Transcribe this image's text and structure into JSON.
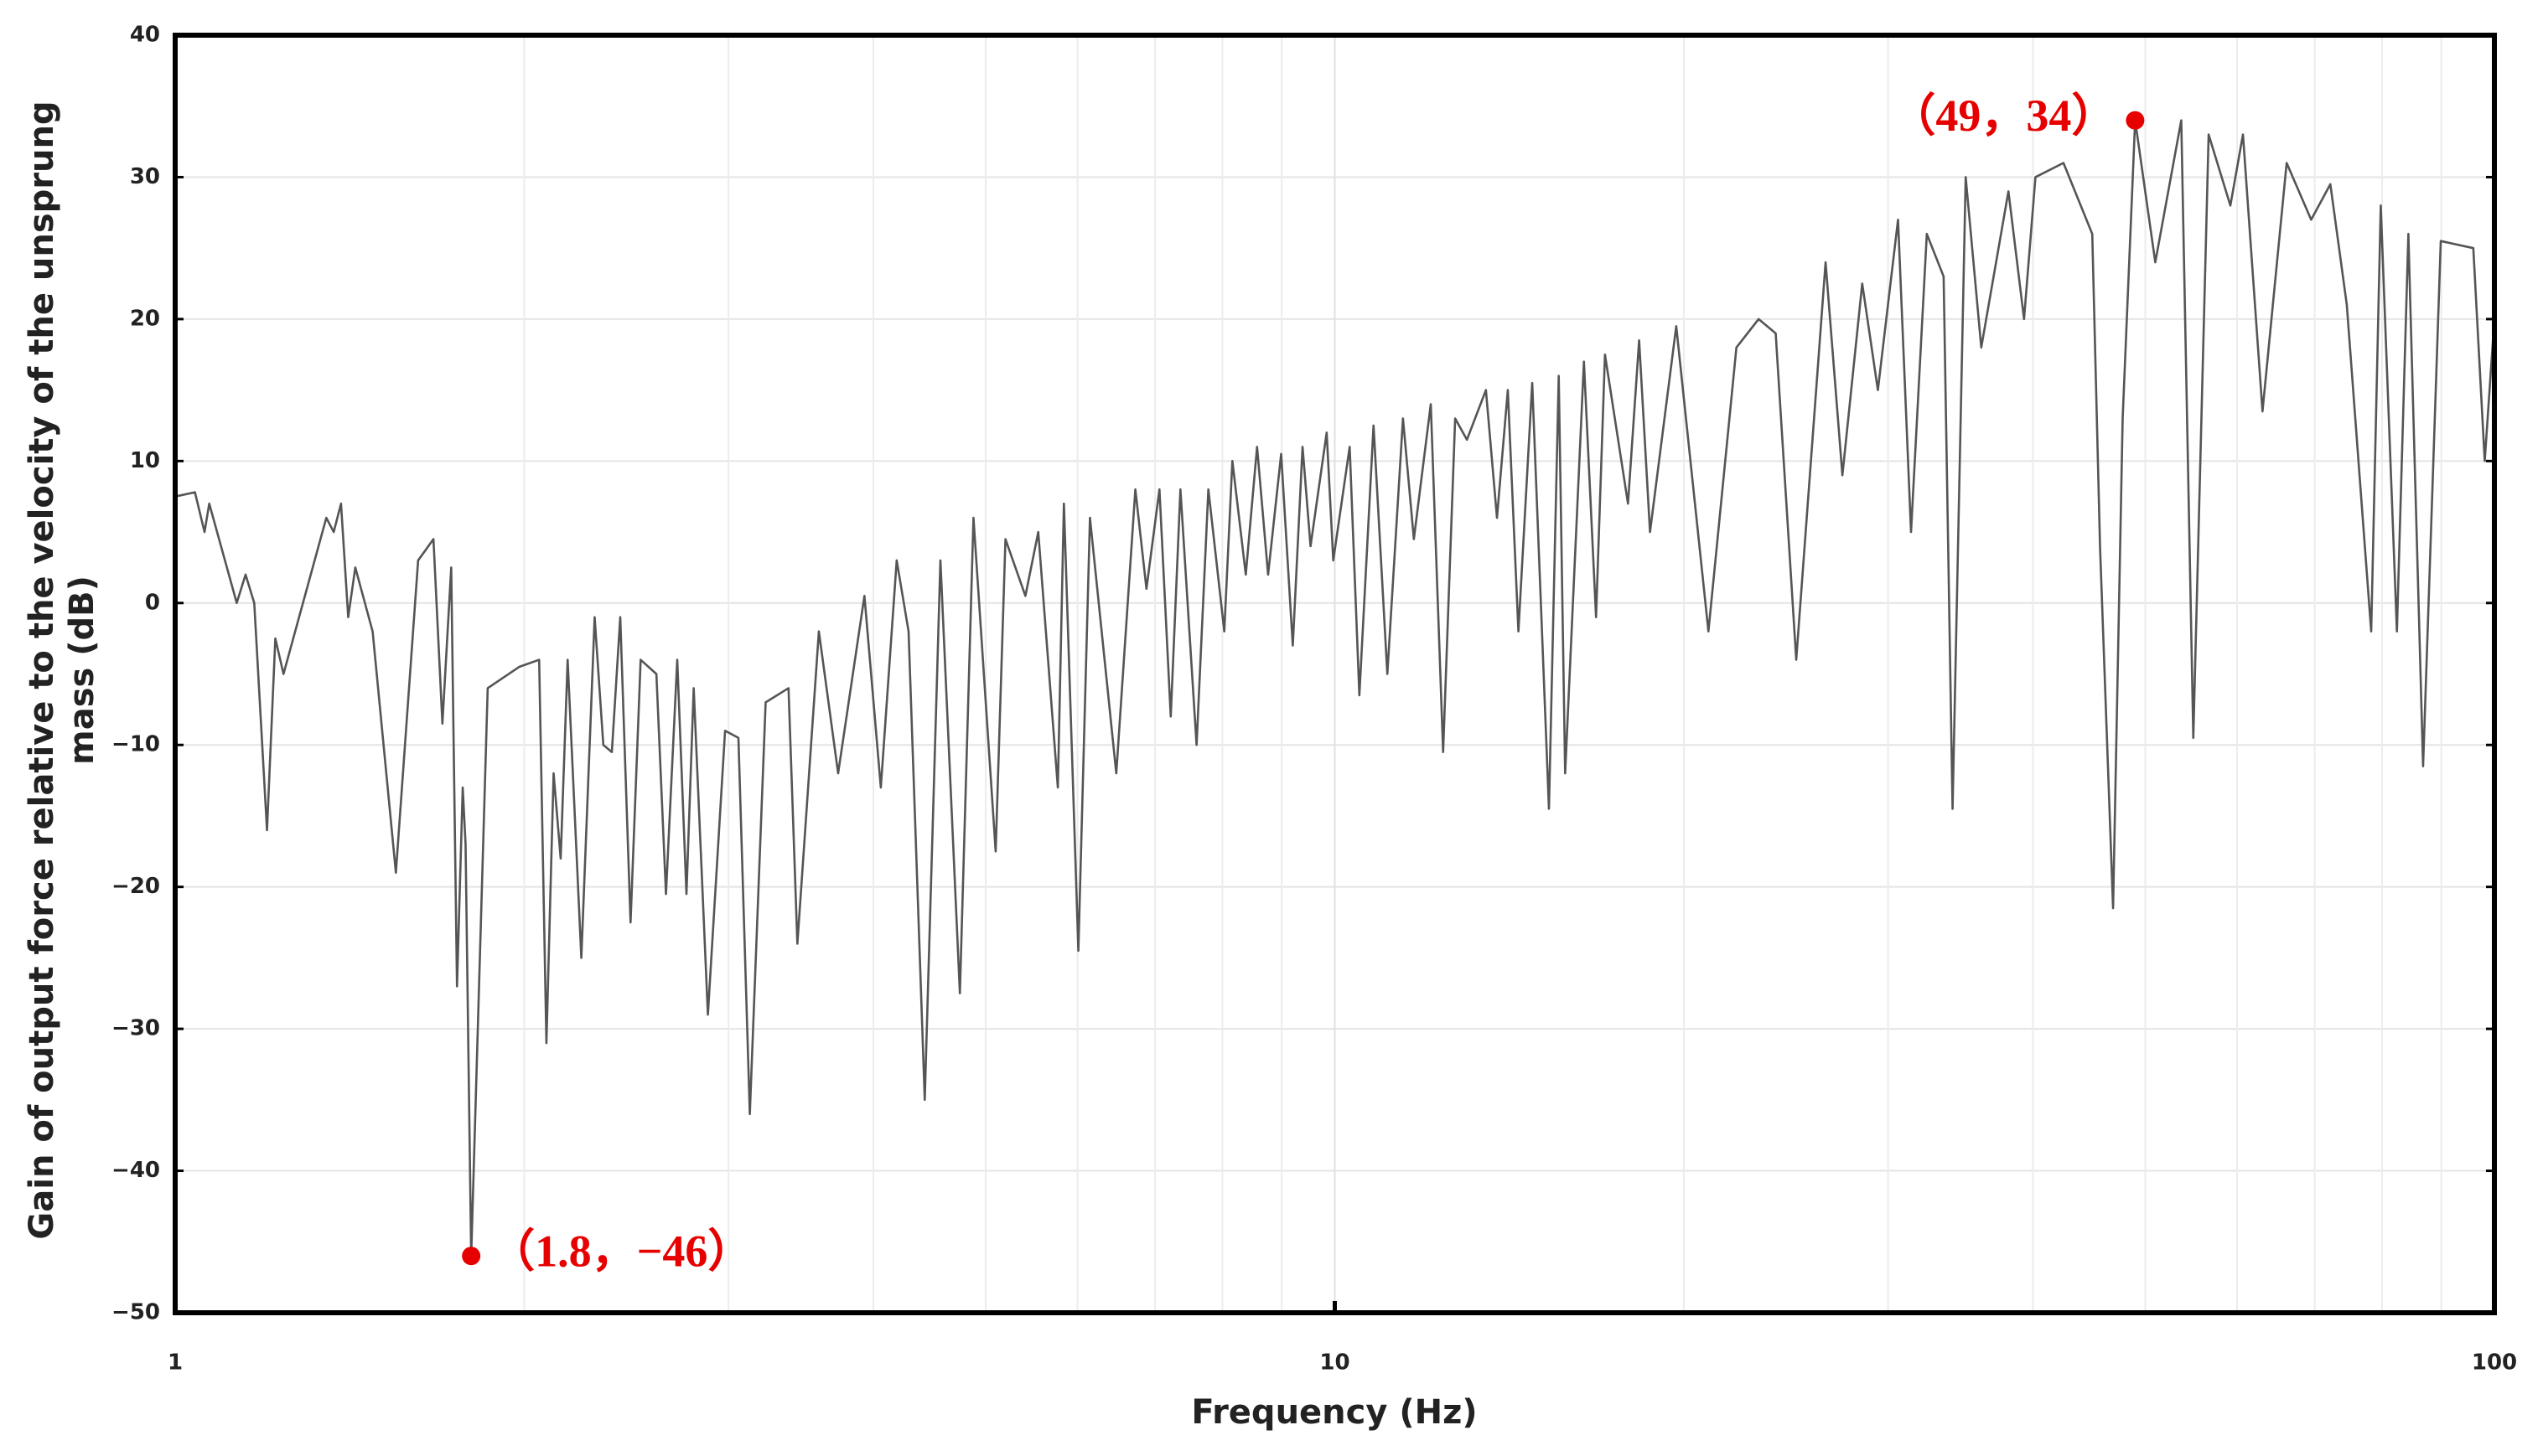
{
  "chart_data": {
    "type": "line",
    "xlabel": "Frequency (Hz)",
    "ylabel": [
      "Gain of output force relative to the velocity of the unsprung",
      "mass (dB)"
    ],
    "xscale": "log",
    "xlim": [
      1,
      100
    ],
    "ylim": [
      -50,
      40
    ],
    "xticks": [
      1,
      10,
      100
    ],
    "xminorticks": [
      2,
      3,
      4,
      5,
      6,
      7,
      8,
      9,
      20,
      30,
      40,
      50,
      60,
      70,
      80,
      90
    ],
    "yticks": [
      {
        "value": -50,
        "label": "−50"
      },
      {
        "value": -40,
        "label": "−40"
      },
      {
        "value": -30,
        "label": "−30"
      },
      {
        "value": -20,
        "label": "−20"
      },
      {
        "value": -10,
        "label": "−10"
      },
      0,
      10,
      20,
      30,
      40
    ],
    "grid": true,
    "color": "#555555",
    "x": [
      1,
      1.04,
      1.06,
      1.07,
      1.13,
      1.15,
      1.17,
      1.2,
      1.22,
      1.24,
      1.35,
      1.37,
      1.39,
      1.41,
      1.43,
      1.48,
      1.55,
      1.62,
      1.67,
      1.7,
      1.73,
      1.75,
      1.77,
      1.78,
      1.8,
      1.86,
      1.98,
      2.06,
      2.09,
      2.12,
      2.15,
      2.18,
      2.24,
      2.3,
      2.34,
      2.38,
      2.42,
      2.47,
      2.52,
      2.6,
      2.65,
      2.71,
      2.76,
      2.8,
      2.88,
      2.98,
      3.06,
      3.13,
      3.23,
      3.38,
      3.44,
      3.59,
      3.73,
      3.93,
      4.06,
      4.19,
      4.29,
      4.43,
      4.57,
      4.75,
      4.88,
      5.1,
      5.2,
      5.41,
      5.55,
      5.77,
      5.84,
      6.01,
      6.15,
      6.48,
      6.73,
      6.88,
      7.06,
      7.22,
      7.36,
      7.6,
      7.78,
      8.03,
      8.16,
      8.38,
      8.57,
      8.76,
      8.99,
      9.2,
      9.38,
      9.53,
      9.84,
      9.97,
      10.3,
      10.5,
      10.8,
      11.1,
      11.45,
      11.7,
      12.1,
      12.4,
      12.7,
      13,
      13.5,
      13.8,
      14.1,
      14.4,
      14.8,
      15.3,
      15.6,
      15.8,
      16.4,
      16.8,
      17.1,
      17.9,
      18.3,
      18.7,
      19.7,
      21,
      22.2,
      23.2,
      24,
      25,
      26.5,
      27.4,
      28.5,
      29.4,
      30.6,
      31.4,
      32.4,
      33.5,
      34.1,
      35,
      36.1,
      38.1,
      39.3,
      40.2,
      42.5,
      45,
      45.7,
      46.9,
      47.8,
      49,
      51,
      53.7,
      55,
      56.7,
      59.2,
      60.7,
      63.1,
      66.2,
      69.5,
      72.2,
      74.6,
      78.3,
      79.8,
      82.4,
      84.3,
      86.8,
      89.9,
      95.9,
      98.1,
      100
    ],
    "values": [
      7.5,
      7.8,
      5,
      7,
      0,
      2,
      0,
      -16,
      -2.5,
      -5,
      6,
      5,
      7,
      -1,
      2.5,
      -2,
      -19,
      3,
      4.5,
      -8.5,
      2.5,
      -27,
      -13,
      -17,
      -46,
      -6,
      -4.5,
      -4,
      -31,
      -12,
      -18,
      -4,
      -25,
      -1,
      -10,
      -10.5,
      -1,
      -22.5,
      -4,
      -5,
      -20.5,
      -4,
      -20.5,
      -6,
      -29,
      -9,
      -9.5,
      -36,
      -7,
      -6,
      -24,
      -2,
      -12,
      0.5,
      -13,
      3,
      -2,
      -35,
      3,
      -27.5,
      6,
      -17.5,
      4.5,
      0.5,
      5,
      -13,
      7,
      -24.5,
      6,
      -12,
      8,
      1,
      8,
      -8,
      8,
      -10,
      8,
      -2,
      10,
      2,
      11,
      2,
      10.5,
      -3,
      11,
      4,
      12,
      3,
      11,
      -6.5,
      12.5,
      -5,
      13,
      4.5,
      14,
      -10.5,
      13,
      11.5,
      15,
      6,
      15,
      -2,
      15.5,
      -14.5,
      16,
      -12,
      17,
      -1,
      17.5,
      7,
      18.5,
      5,
      19.5,
      -2,
      18,
      20,
      19,
      -4,
      24,
      9,
      22.5,
      15,
      27,
      5,
      26,
      23,
      -14.5,
      30,
      18,
      29,
      20,
      30,
      31,
      26,
      4,
      -21.5,
      13,
      34,
      24,
      34,
      -9.5,
      33,
      28,
      33,
      13.5,
      31,
      27,
      29.5,
      21,
      -2,
      28,
      -2,
      26,
      -11.5,
      25.5,
      25,
      10,
      20
    ],
    "annotations": [
      {
        "x": 49,
        "y": 34,
        "label": "（49，34）",
        "color": "#e60000"
      },
      {
        "x": 1.8,
        "y": -46,
        "label": "（1.8，−46）",
        "color": "#e60000"
      }
    ]
  }
}
